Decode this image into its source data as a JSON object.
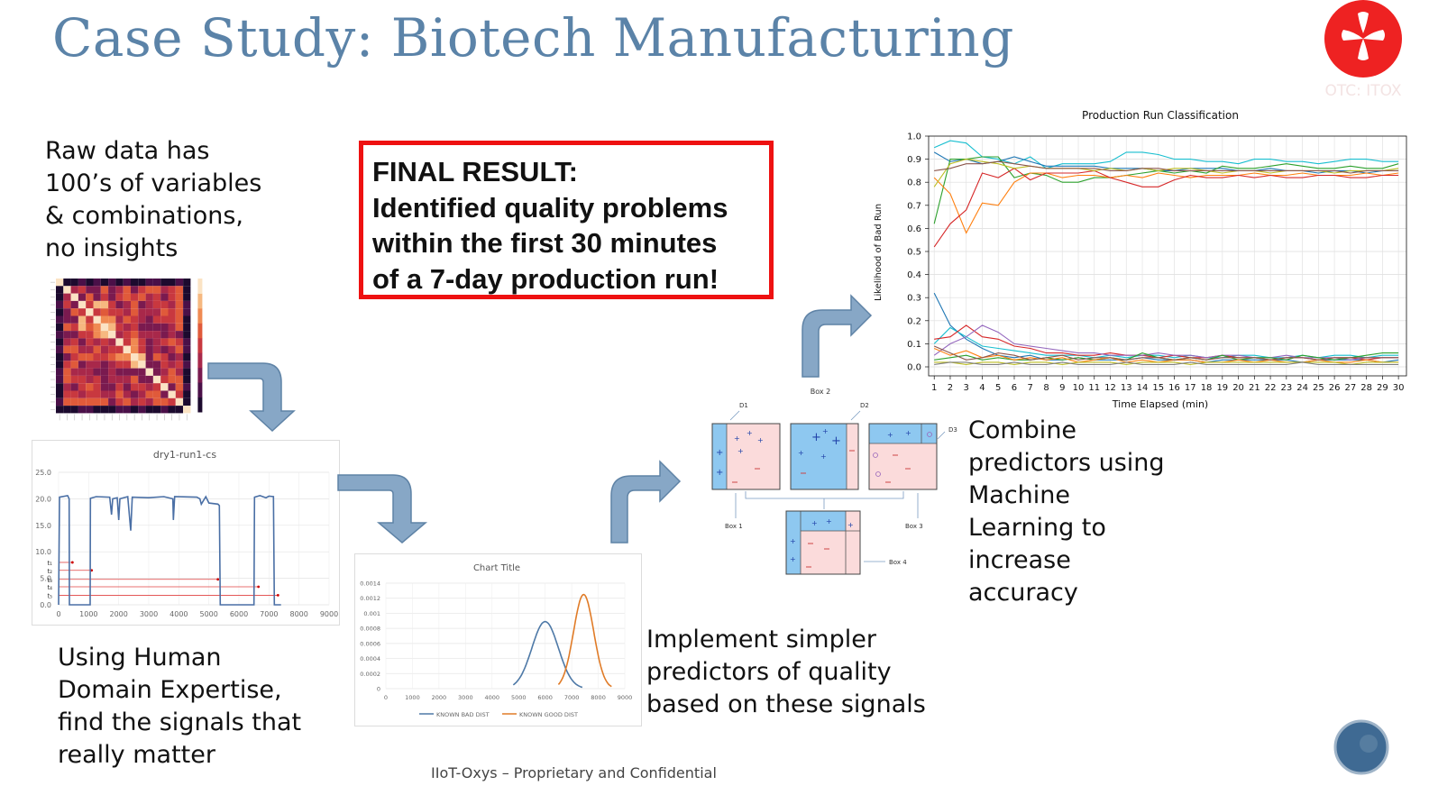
{
  "slide": {
    "title": "Case Study: Biotech Manufacturing",
    "logo_text": "OTC: ITOX",
    "raw_data_text": [
      "Raw data has",
      "100’s of variables",
      "& combinations,",
      "no insights"
    ],
    "final_result": [
      "FINAL RESULT:",
      "Identified quality problems",
      "within the first 30 minutes",
      "of a 7-day production run!"
    ],
    "domain_text": [
      "Using Human",
      "Domain Expertise,",
      "find the signals that",
      "really matter"
    ],
    "implement_text": [
      "Implement simpler",
      "predictors of quality",
      "based on these signals"
    ],
    "combine_text": [
      "Combine",
      "predictors using",
      "Machine",
      "Learning to",
      "increase",
      "accuracy"
    ],
    "footer": "IIoT-Oxys – Proprietary and  Confidential",
    "colors": {
      "title": "#5b83a8",
      "final_border": "#ee1111",
      "arrow_fill": "#87a7c6",
      "arrow_stroke": "#5f83a6"
    }
  },
  "signal_chart": {
    "title": "dry1-run1-cs",
    "y_ticks": [
      "25.0",
      "20.0",
      "15.0",
      "10.0",
      "5.0",
      "0.0"
    ],
    "x_ticks": [
      "0",
      "1000",
      "2000",
      "3000",
      "4000",
      "5000",
      "6000",
      "7000",
      "8000",
      "9000"
    ],
    "markers": [
      "t₁",
      "t₂",
      "t₃",
      "t₄",
      "t₅"
    ]
  },
  "dist_chart": {
    "title": "Chart Title",
    "y_ticks": [
      "0.0014",
      "0.0012",
      "0.001",
      "0.0008",
      "0.0006",
      "0.0004",
      "0.0002",
      "0"
    ],
    "x_ticks": [
      "0",
      "1000",
      "2000",
      "3000",
      "4000",
      "5000",
      "6000",
      "7000",
      "8000",
      "9000"
    ],
    "legend": [
      "KNOWN BAD DIST",
      "KNOWN GOOD DIST"
    ],
    "bad_mean": 6000,
    "bad_sd": 500,
    "bad_peak": 0.00089,
    "good_mean": 7450,
    "good_sd": 380,
    "good_peak": 0.00125,
    "colors": [
      "#4e79a7",
      "#e07b27"
    ]
  },
  "tree_diagram": {
    "labels": [
      "D1",
      "Box 2",
      "D2",
      "D3",
      "Box 1",
      "Box 3",
      "Box 4"
    ]
  },
  "chart_data": {
    "type": "line",
    "title": "Production Run Classification",
    "xlabel": "Time Elapsed (min)",
    "ylabel": "Likelihood of Bad Run",
    "x": [
      1,
      2,
      3,
      4,
      5,
      6,
      7,
      8,
      9,
      10,
      11,
      12,
      13,
      14,
      15,
      16,
      17,
      18,
      19,
      20,
      21,
      22,
      23,
      24,
      25,
      26,
      27,
      28,
      29,
      30
    ],
    "x_tick_labels": [
      "1",
      "2",
      "3",
      "4",
      "5",
      "6",
      "7",
      "8",
      "9",
      "10",
      "11",
      "12",
      "13",
      "14",
      "15",
      "16",
      "17",
      "18",
      "19",
      "20",
      "21",
      "22",
      "23",
      "24",
      "25",
      "26",
      "27",
      "28",
      "29",
      "30"
    ],
    "y_tick_labels": [
      "0.0",
      "0.1",
      "0.2",
      "0.3",
      "0.4",
      "0.5",
      "0.6",
      "0.7",
      "0.8",
      "0.9",
      "1.0"
    ],
    "ylim": [
      0,
      1.0
    ],
    "xlim": [
      1,
      30
    ],
    "grid": true,
    "series": [
      {
        "color": "#17becf",
        "values": [
          0.95,
          0.98,
          0.97,
          0.91,
          0.9,
          0.88,
          0.91,
          0.86,
          0.88,
          0.88,
          0.88,
          0.89,
          0.93,
          0.93,
          0.92,
          0.9,
          0.9,
          0.89,
          0.89,
          0.88,
          0.9,
          0.9,
          0.89,
          0.89,
          0.88,
          0.89,
          0.9,
          0.9,
          0.89,
          0.89
        ]
      },
      {
        "color": "#1f77b4",
        "values": [
          0.93,
          0.89,
          0.9,
          0.88,
          0.89,
          0.91,
          0.89,
          0.87,
          0.87,
          0.87,
          0.87,
          0.86,
          0.86,
          0.86,
          0.85,
          0.85,
          0.86,
          0.86,
          0.86,
          0.85,
          0.85,
          0.86,
          0.85,
          0.85,
          0.84,
          0.85,
          0.85,
          0.84,
          0.85,
          0.85
        ]
      },
      {
        "color": "#2ca02c",
        "values": [
          0.62,
          0.9,
          0.9,
          0.91,
          0.91,
          0.82,
          0.84,
          0.83,
          0.8,
          0.8,
          0.82,
          0.82,
          0.83,
          0.84,
          0.85,
          0.84,
          0.85,
          0.84,
          0.87,
          0.86,
          0.86,
          0.87,
          0.88,
          0.87,
          0.86,
          0.86,
          0.87,
          0.86,
          0.86,
          0.88
        ]
      },
      {
        "color": "#ff7f0e",
        "values": [
          0.82,
          0.75,
          0.58,
          0.71,
          0.7,
          0.8,
          0.84,
          0.84,
          0.82,
          0.83,
          0.83,
          0.82,
          0.83,
          0.82,
          0.84,
          0.83,
          0.82,
          0.83,
          0.83,
          0.83,
          0.84,
          0.83,
          0.83,
          0.84,
          0.83,
          0.83,
          0.83,
          0.84,
          0.83,
          0.84
        ]
      },
      {
        "color": "#d62728",
        "values": [
          0.52,
          0.62,
          0.68,
          0.84,
          0.82,
          0.86,
          0.81,
          0.84,
          0.84,
          0.84,
          0.85,
          0.82,
          0.8,
          0.78,
          0.78,
          0.81,
          0.83,
          0.82,
          0.82,
          0.83,
          0.82,
          0.83,
          0.82,
          0.82,
          0.83,
          0.83,
          0.82,
          0.82,
          0.83,
          0.83
        ]
      },
      {
        "color": "#bcbd22",
        "values": [
          0.78,
          0.88,
          0.9,
          0.89,
          0.88,
          0.86,
          0.87,
          0.86,
          0.86,
          0.86,
          0.85,
          0.86,
          0.85,
          0.86,
          0.85,
          0.86,
          0.86,
          0.85,
          0.84,
          0.85,
          0.85,
          0.84,
          0.85,
          0.85,
          0.85,
          0.84,
          0.85,
          0.85,
          0.85,
          0.86
        ]
      },
      {
        "color": "#8c564b",
        "values": [
          0.85,
          0.86,
          0.88,
          0.88,
          0.89,
          0.88,
          0.87,
          0.86,
          0.86,
          0.86,
          0.86,
          0.85,
          0.85,
          0.86,
          0.86,
          0.85,
          0.85,
          0.85,
          0.85,
          0.85,
          0.85,
          0.85,
          0.85,
          0.85,
          0.85,
          0.85,
          0.84,
          0.85,
          0.85,
          0.85
        ]
      },
      {
        "color": "#1f77b4",
        "values": [
          0.32,
          0.18,
          0.12,
          0.08,
          0.05,
          0.04,
          0.05,
          0.03,
          0.03,
          0.04,
          0.03,
          0.03,
          0.03,
          0.04,
          0.03,
          0.03,
          0.03,
          0.02,
          0.03,
          0.03,
          0.03,
          0.03,
          0.03,
          0.02,
          0.03,
          0.03,
          0.03,
          0.03,
          0.02,
          0.03
        ]
      },
      {
        "color": "#17becf",
        "values": [
          0.1,
          0.17,
          0.13,
          0.09,
          0.08,
          0.07,
          0.06,
          0.05,
          0.05,
          0.05,
          0.04,
          0.05,
          0.04,
          0.05,
          0.05,
          0.04,
          0.05,
          0.04,
          0.04,
          0.05,
          0.05,
          0.04,
          0.04,
          0.05,
          0.04,
          0.05,
          0.05,
          0.04,
          0.05,
          0.05
        ]
      },
      {
        "color": "#d62728",
        "values": [
          0.12,
          0.13,
          0.18,
          0.13,
          0.12,
          0.09,
          0.08,
          0.06,
          0.06,
          0.05,
          0.05,
          0.06,
          0.05,
          0.05,
          0.04,
          0.05,
          0.04,
          0.04,
          0.05,
          0.04,
          0.04,
          0.03,
          0.04,
          0.04,
          0.03,
          0.04,
          0.04,
          0.03,
          0.04,
          0.04
        ]
      },
      {
        "color": "#9467bd",
        "values": [
          0.05,
          0.1,
          0.13,
          0.18,
          0.15,
          0.1,
          0.09,
          0.08,
          0.07,
          0.06,
          0.06,
          0.05,
          0.05,
          0.05,
          0.06,
          0.05,
          0.05,
          0.04,
          0.05,
          0.05,
          0.04,
          0.04,
          0.05,
          0.04,
          0.04,
          0.04,
          0.03,
          0.04,
          0.04,
          0.04
        ]
      },
      {
        "color": "#2ca02c",
        "values": [
          0.03,
          0.04,
          0.05,
          0.03,
          0.04,
          0.03,
          0.03,
          0.04,
          0.03,
          0.04,
          0.03,
          0.04,
          0.03,
          0.06,
          0.04,
          0.03,
          0.04,
          0.03,
          0.05,
          0.03,
          0.04,
          0.04,
          0.03,
          0.05,
          0.04,
          0.03,
          0.04,
          0.05,
          0.06,
          0.06
        ]
      },
      {
        "color": "#ff7f0e",
        "values": [
          0.08,
          0.05,
          0.07,
          0.04,
          0.05,
          0.03,
          0.04,
          0.03,
          0.04,
          0.02,
          0.03,
          0.04,
          0.02,
          0.03,
          0.02,
          0.03,
          0.03,
          0.02,
          0.02,
          0.03,
          0.02,
          0.03,
          0.02,
          0.02,
          0.03,
          0.02,
          0.02,
          0.03,
          0.02,
          0.02
        ]
      },
      {
        "color": "#8c564b",
        "values": [
          0.09,
          0.06,
          0.03,
          0.04,
          0.06,
          0.05,
          0.03,
          0.04,
          0.05,
          0.03,
          0.04,
          0.04,
          0.03,
          0.04,
          0.04,
          0.03,
          0.04,
          0.03,
          0.04,
          0.04,
          0.04,
          0.03,
          0.04,
          0.04,
          0.03,
          0.04,
          0.04,
          0.04,
          0.04,
          0.04
        ]
      },
      {
        "color": "#bcbd22",
        "values": [
          0.02,
          0.02,
          0.01,
          0.02,
          0.02,
          0.01,
          0.02,
          0.02,
          0.01,
          0.02,
          0.02,
          0.02,
          0.01,
          0.02,
          0.02,
          0.02,
          0.01,
          0.02,
          0.02,
          0.02,
          0.02,
          0.02,
          0.02,
          0.02,
          0.02,
          0.02,
          0.01,
          0.02,
          0.02,
          0.02
        ]
      },
      {
        "color": "#7f7f7f",
        "values": [
          0.01,
          0.02,
          0.02,
          0.01,
          0.01,
          0.02,
          0.01,
          0.01,
          0.02,
          0.01,
          0.01,
          0.01,
          0.02,
          0.01,
          0.01,
          0.01,
          0.02,
          0.01,
          0.01,
          0.01,
          0.01,
          0.01,
          0.01,
          0.02,
          0.01,
          0.01,
          0.01,
          0.01,
          0.01,
          0.01
        ]
      }
    ]
  }
}
